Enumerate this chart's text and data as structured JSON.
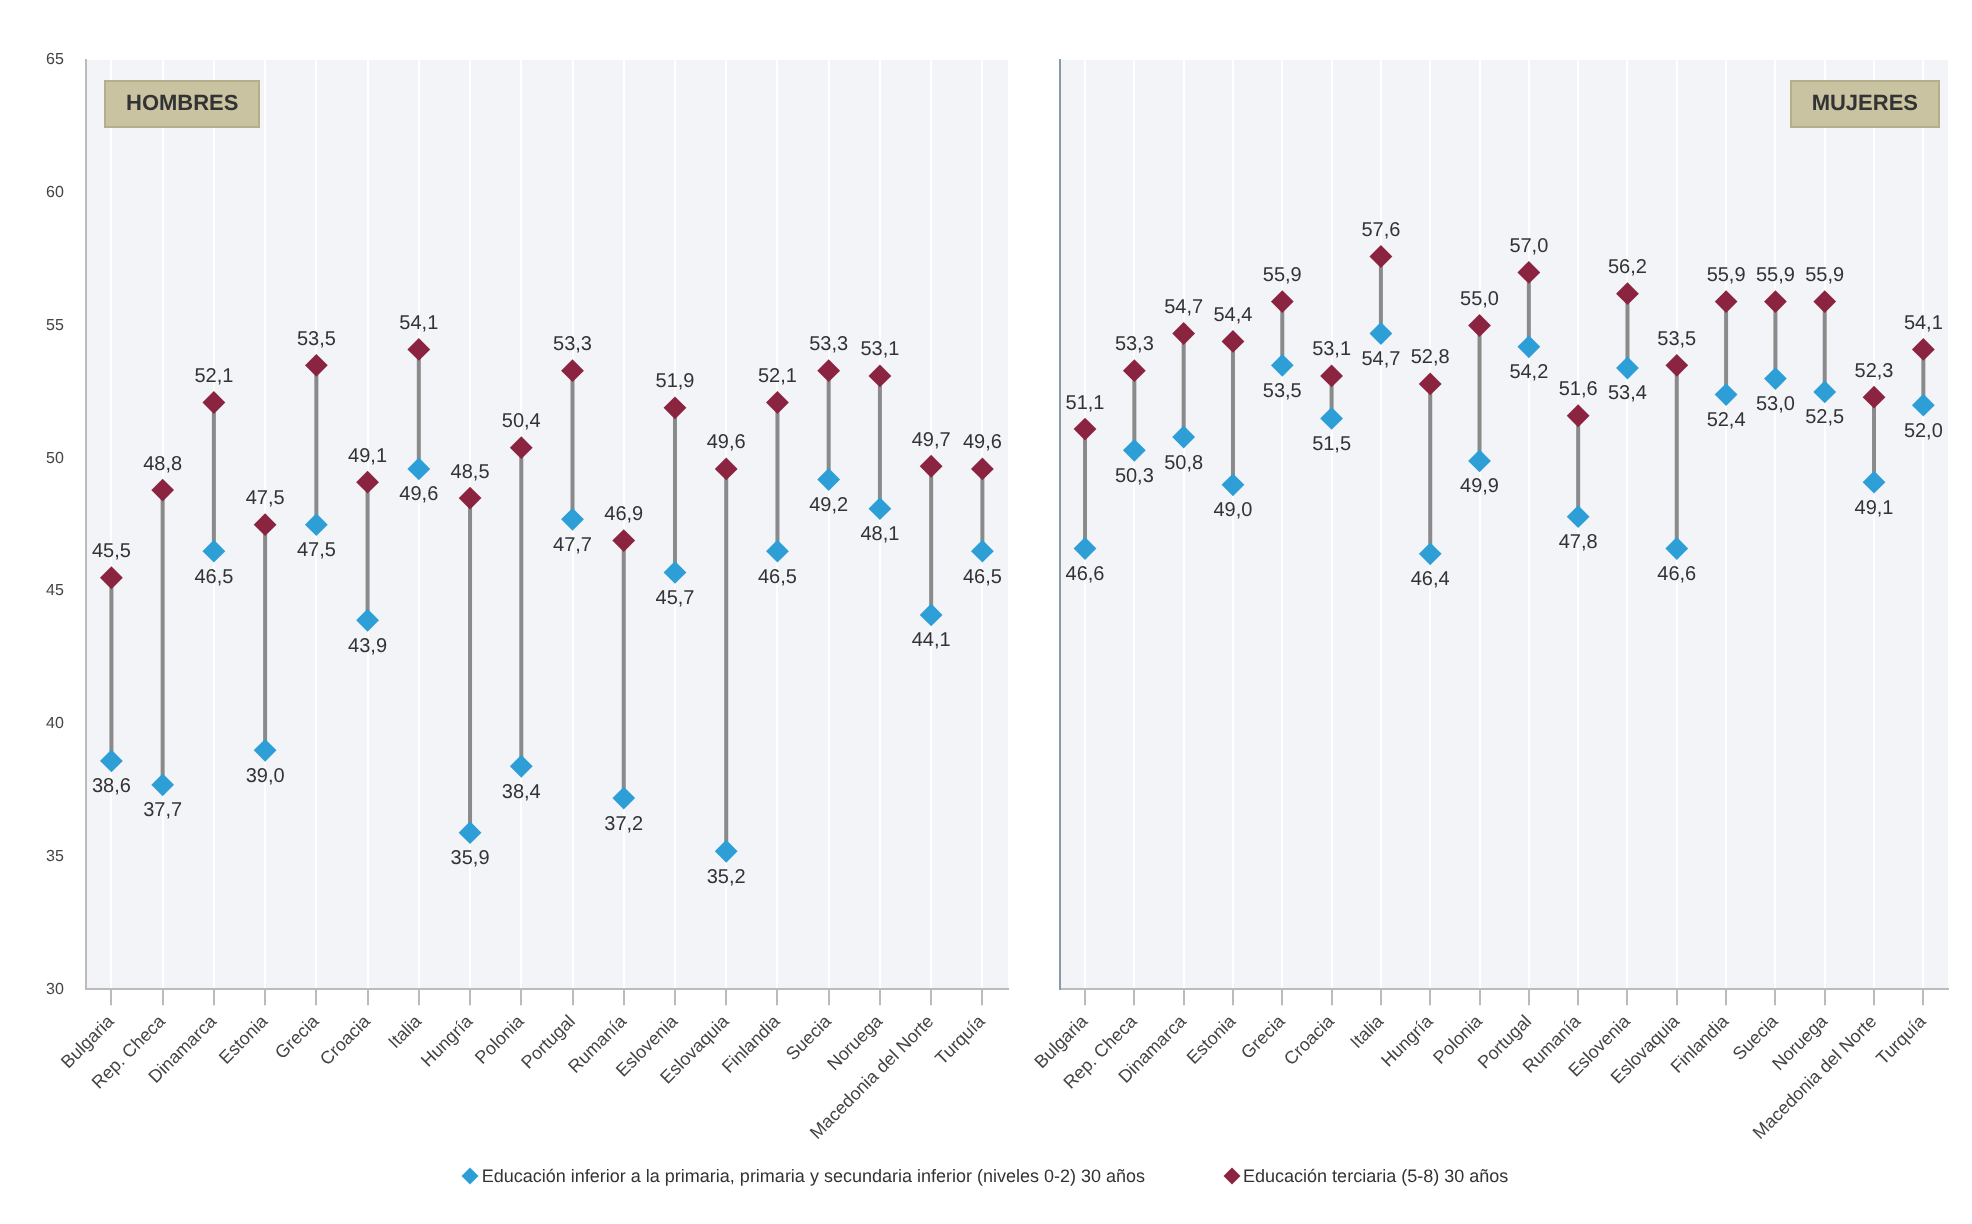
{
  "chart_data": [
    {
      "type": "scatter",
      "title": "HOMBRES",
      "categories": [
        "Bulgaria",
        "Rep. Checa",
        "Dinamarca",
        "Estonia",
        "Grecia",
        "Croacia",
        "Italia",
        "Hungría",
        "Polonia",
        "Portugal",
        "Rumanía",
        "Eslovenia",
        "Eslovaquia",
        "Finlandia",
        "Suecia",
        "Noruega",
        "Macedonia del Norte",
        "Turquía"
      ],
      "series": [
        {
          "name": "Educación inferior a la primaria, primaria y secundaria inferior (niveles 0-2) 30 años",
          "color": "#2e9fd6",
          "values": [
            38.6,
            37.7,
            46.5,
            39.0,
            47.5,
            43.9,
            49.6,
            35.9,
            38.4,
            47.7,
            37.2,
            45.7,
            35.2,
            46.5,
            49.2,
            48.1,
            44.1,
            46.5
          ],
          "value_labels": [
            "38,6",
            "37,7",
            "46,5",
            "39,0",
            "47,5",
            "43,9",
            "49,6",
            "35,9",
            "38,4",
            "47,7",
            "37,2",
            "45,7",
            "35,2",
            "46,5",
            "49,2",
            "48,1",
            "44,1",
            "46,5"
          ]
        },
        {
          "name": "Educación terciaria (5-8) 30 años",
          "color": "#8b2440",
          "values": [
            45.5,
            48.8,
            52.1,
            47.5,
            53.5,
            49.1,
            54.1,
            48.5,
            50.4,
            53.3,
            46.9,
            51.9,
            49.6,
            52.1,
            53.3,
            53.1,
            49.7,
            49.6
          ],
          "value_labels": [
            "45,5",
            "48,8",
            "52,1",
            "47,5",
            "53,5",
            "49,1",
            "54,1",
            "48,5",
            "50,4",
            "53,3",
            "46,9",
            "51,9",
            "49,6",
            "52,1",
            "53,3",
            "53,1",
            "49,7",
            "49,6"
          ]
        }
      ],
      "ylim": [
        30,
        65
      ],
      "yticks": [
        30,
        35,
        40,
        45,
        50,
        55,
        60,
        65
      ],
      "grid": "x",
      "marker": "diamond",
      "legend": "bottom"
    },
    {
      "type": "scatter",
      "title": "MUJERES",
      "categories": [
        "Bulgaria",
        "Rep. Checa",
        "Dinamarca",
        "Estonia",
        "Grecia",
        "Croacia",
        "Italia",
        "Hungría",
        "Polonia",
        "Portugal",
        "Rumanía",
        "Eslovenia",
        "Eslovaquia",
        "Finlandia",
        "Suecia",
        "Noruega",
        "Macedonia del Norte",
        "Turquía"
      ],
      "series": [
        {
          "color": "#2e9fd6",
          "values": [
            46.6,
            50.3,
            50.8,
            49.0,
            53.5,
            51.5,
            54.7,
            46.4,
            49.9,
            54.2,
            47.8,
            53.4,
            46.6,
            52.4,
            53.0,
            52.5,
            49.1,
            52.0
          ],
          "value_labels": [
            "46,6",
            "50,3",
            "50,8",
            "49,0",
            "53,5",
            "51,5",
            "54,7",
            "46,4",
            "49,9",
            "54,2",
            "47,8",
            "53,4",
            "46,6",
            "52,4",
            "53,0",
            "52,5",
            "49,1",
            "52,0"
          ]
        },
        {
          "color": "#8b2440",
          "values": [
            51.1,
            53.3,
            54.7,
            54.4,
            55.9,
            53.1,
            57.6,
            52.8,
            55.0,
            57.0,
            51.6,
            56.2,
            53.5,
            55.9,
            55.9,
            55.9,
            52.3,
            54.1
          ],
          "value_labels": [
            "51,1",
            "53,3",
            "54,7",
            "54,4",
            "55,9",
            "53,1",
            "57,6",
            "52,8",
            "55,0",
            "57,0",
            "51,6",
            "56,2",
            "53,5",
            "55,9",
            "55,9",
            "55,9",
            "52,3",
            "54,1"
          ]
        }
      ],
      "ylim": [
        30,
        65
      ],
      "yticks": [
        30,
        35,
        40,
        45,
        50,
        55,
        60,
        65
      ],
      "grid": "x",
      "marker": "diamond",
      "tick_labels": "x"
    }
  ]
}
